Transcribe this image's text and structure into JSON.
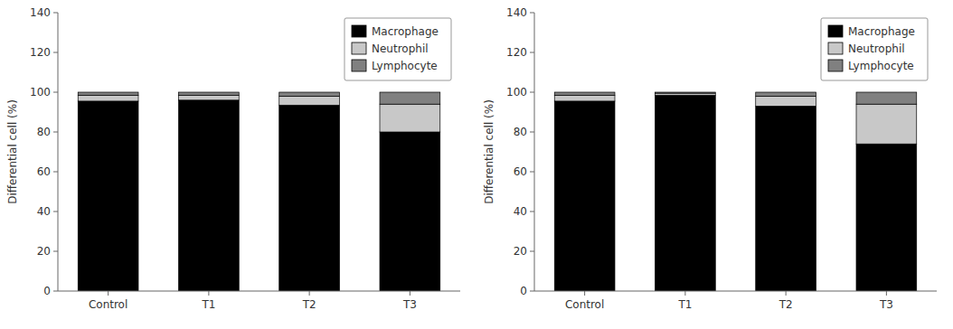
{
  "chart_data": [
    {
      "type": "bar",
      "stacked": true,
      "categories": [
        "Control",
        "T1",
        "T2",
        "T3"
      ],
      "series": [
        {
          "name": "Macrophage",
          "color": "#000000",
          "values": [
            95.5,
            96.0,
            93.5,
            80.0
          ]
        },
        {
          "name": "Neutrophil",
          "color": "#c8c8c8",
          "values": [
            3.0,
            2.5,
            4.5,
            14.0
          ]
        },
        {
          "name": "Lymphocyte",
          "color": "#808080",
          "values": [
            1.5,
            1.5,
            2.0,
            6.0
          ]
        }
      ],
      "ylabel": "Differential cell (%)",
      "ylim": [
        0,
        140
      ],
      "yticks": [
        0,
        20,
        40,
        60,
        80,
        100,
        120,
        140
      ],
      "legend": "upper right"
    },
    {
      "type": "bar",
      "stacked": true,
      "categories": [
        "Control",
        "T1",
        "T2",
        "T3"
      ],
      "series": [
        {
          "name": "Macrophage",
          "color": "#000000",
          "values": [
            95.5,
            98.5,
            93.0,
            74.0
          ]
        },
        {
          "name": "Neutrophil",
          "color": "#c8c8c8",
          "values": [
            3.0,
            1.0,
            5.0,
            20.0
          ]
        },
        {
          "name": "Lymphocyte",
          "color": "#808080",
          "values": [
            1.5,
            0.5,
            2.0,
            6.0
          ]
        }
      ],
      "ylabel": "Differential cell (%)",
      "ylim": [
        0,
        140
      ],
      "yticks": [
        0,
        20,
        40,
        60,
        80,
        100,
        120,
        140
      ],
      "legend": "upper right"
    }
  ]
}
